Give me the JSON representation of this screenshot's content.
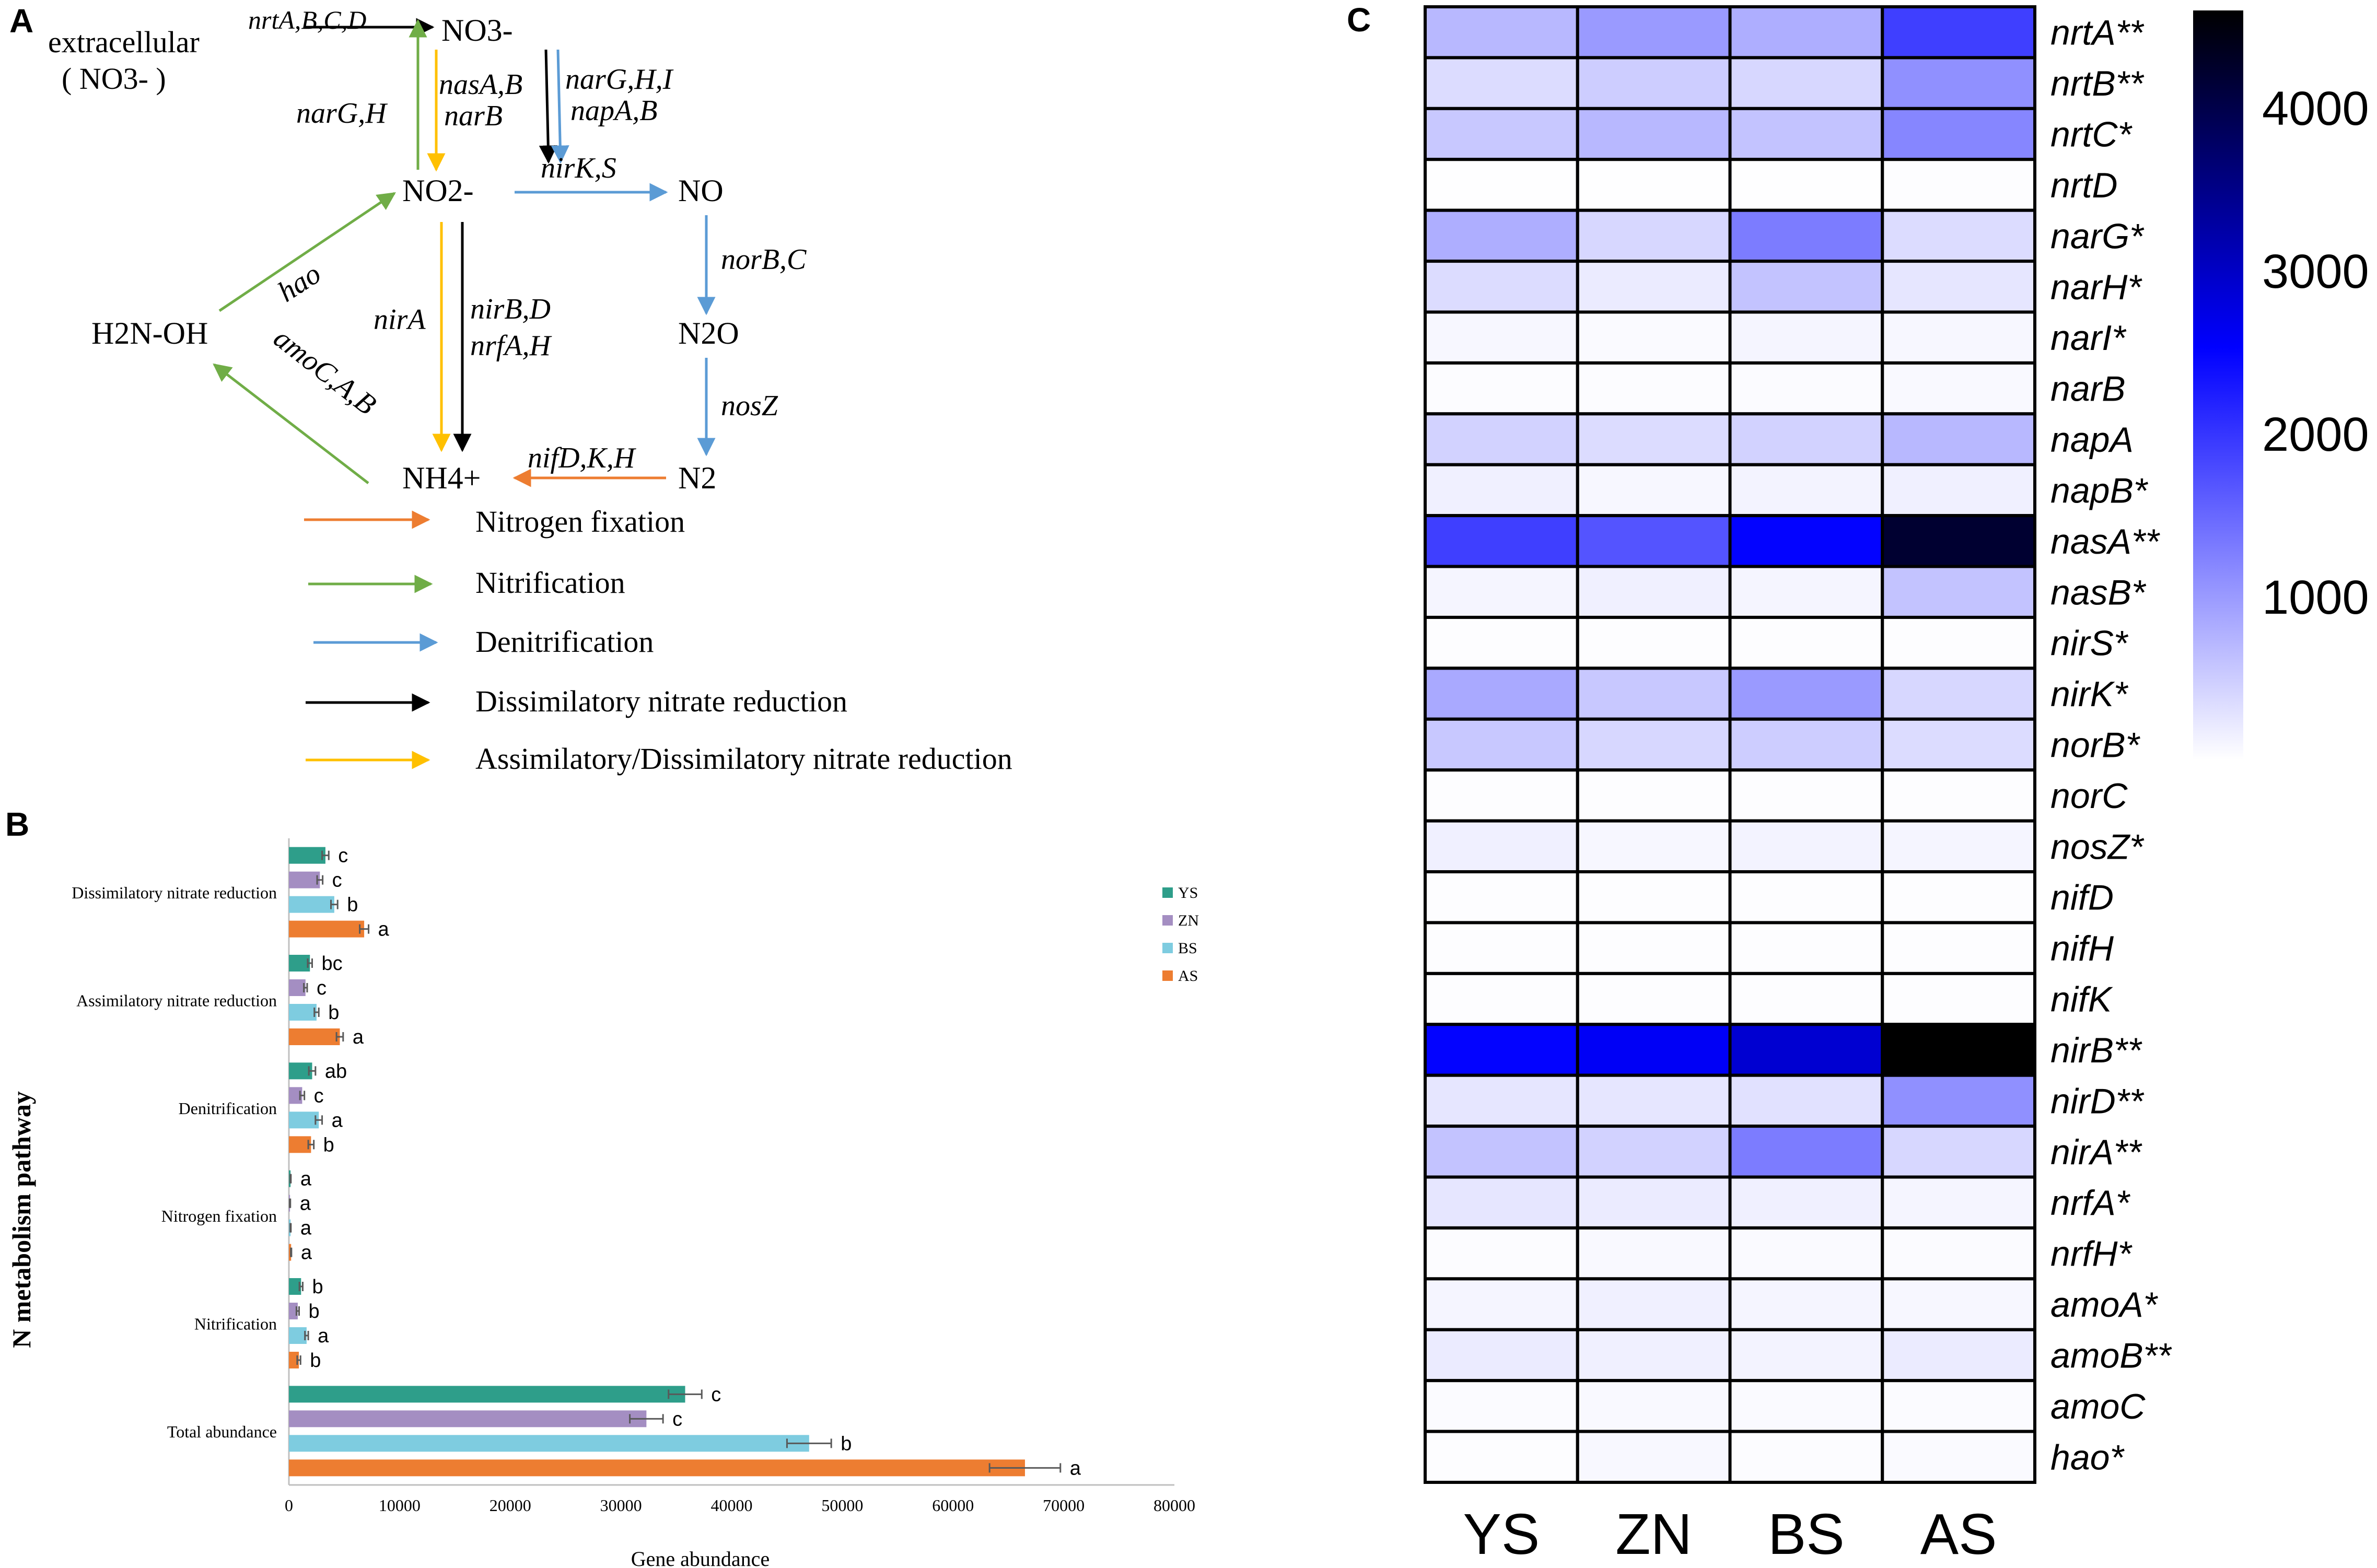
{
  "panel_labels": {
    "a": "A",
    "b": "B",
    "c": "C"
  },
  "diagram": {
    "nodes": {
      "extracellular": "extracellular",
      "extracellular_no3": "( NO3- )",
      "no3": "NO3-",
      "no2": "NO2-",
      "no": "NO",
      "n2o": "N2O",
      "n2": "N2",
      "nh4": "NH4+",
      "h2noh": "H2N-OH"
    },
    "edge_labels": {
      "nrtABCD": "nrtA,B,C,D",
      "narGH": "narG,H",
      "nasAB_narB_1": "nasA,B",
      "nasAB_narB_2": "narB",
      "narGHI_napAB_1": "narG,H,I",
      "narGHI_napAB_2": "napA,B",
      "nirKS": "nirK,S",
      "hao": "hao",
      "nirA": "nirA",
      "nirBD_nrfAH_1": "nirB,D",
      "nirBD_nrfAH_2": "nrfA,H",
      "norBC": "norB,C",
      "nosZ": "nosZ",
      "amoCAB": "amoC,A,B",
      "nifDKH": "nifD,K,H"
    },
    "legend": [
      {
        "label": "Nitrogen fixation",
        "color": "#ed7d31"
      },
      {
        "label": "Nitrification",
        "color": "#70ad47"
      },
      {
        "label": "Denitrification",
        "color": "#5b9bd5"
      },
      {
        "label": "Dissimilatory nitrate reduction",
        "color": "#000000"
      },
      {
        "label": "Assimilatory/Dissimilatory nitrate reduction",
        "color": "#ffc000"
      }
    ]
  },
  "chart_data": [
    {
      "type": "bar",
      "orientation": "horizontal",
      "xlabel": "Gene abundance",
      "ylabel": "N metabolism pathway",
      "xlim": [
        0,
        80000
      ],
      "xticks": [
        0,
        10000,
        20000,
        30000,
        40000,
        50000,
        60000,
        70000,
        80000
      ],
      "categories": [
        "Dissimilatory nitrate reduction",
        "Assimilatory nitrate reduction",
        "Denitrification",
        "Nitrogen fixation",
        "Nitrification",
        "Total abundance"
      ],
      "series": [
        {
          "name": "YS",
          "color": "#2e9e8a",
          "values": [
            3300,
            1900,
            2100,
            150,
            1100,
            35800
          ],
          "errors": [
            300,
            200,
            300,
            30,
            150,
            1500
          ],
          "letters": [
            "c",
            "bc",
            "ab",
            "a",
            "b",
            "c"
          ]
        },
        {
          "name": "ZN",
          "color": "#a48ec2",
          "values": [
            2800,
            1500,
            1200,
            100,
            800,
            32300
          ],
          "errors": [
            250,
            150,
            200,
            30,
            120,
            1500
          ],
          "letters": [
            "c",
            "c",
            "c",
            "a",
            "b",
            "c"
          ]
        },
        {
          "name": "BS",
          "color": "#7ecce0",
          "values": [
            4100,
            2500,
            2700,
            150,
            1600,
            47000
          ],
          "errors": [
            300,
            200,
            300,
            30,
            150,
            2000
          ],
          "letters": [
            "b",
            "b",
            "a",
            "a",
            "a",
            "b"
          ]
        },
        {
          "name": "AS",
          "color": "#ed7d31",
          "values": [
            6800,
            4600,
            2000,
            200,
            900,
            66500
          ],
          "errors": [
            400,
            300,
            250,
            30,
            150,
            3200
          ],
          "letters": [
            "a",
            "a",
            "b",
            "a",
            "b",
            "a"
          ]
        }
      ],
      "legend_position": "right"
    },
    {
      "type": "heatmap",
      "columns": [
        "YS",
        "ZN",
        "BS",
        "AS"
      ],
      "rows": [
        "nrtA**",
        "nrtB**",
        "nrtC*",
        "nrtD",
        "narG*",
        "narH*",
        "narI*",
        "narB",
        "napA",
        "napB*",
        "nasA**",
        "nasB*",
        "nirS*",
        "nirK*",
        "norB*",
        "norC",
        "nosZ*",
        "nifD",
        "nifH",
        "nifK",
        "nirB**",
        "nirD**",
        "nirA**",
        "nrfA*",
        "nrfH*",
        "amoA*",
        "amoB**",
        "amoC",
        "hao*"
      ],
      "values": [
        [
          700,
          1000,
          800,
          1900
        ],
        [
          350,
          500,
          400,
          1100
        ],
        [
          550,
          700,
          600,
          1200
        ],
        [
          10,
          10,
          10,
          20
        ],
        [
          800,
          400,
          1300,
          350
        ],
        [
          350,
          200,
          600,
          250
        ],
        [
          80,
          50,
          100,
          80
        ],
        [
          30,
          30,
          40,
          60
        ],
        [
          450,
          350,
          450,
          700
        ],
        [
          150,
          80,
          120,
          150
        ],
        [
          1900,
          1700,
          2500,
          4200
        ],
        [
          100,
          150,
          100,
          600
        ],
        [
          20,
          20,
          20,
          20
        ],
        [
          850,
          550,
          1000,
          400
        ],
        [
          550,
          400,
          500,
          350
        ],
        [
          20,
          20,
          20,
          20
        ],
        [
          150,
          80,
          120,
          100
        ],
        [
          20,
          20,
          20,
          20
        ],
        [
          20,
          20,
          20,
          20
        ],
        [
          20,
          20,
          20,
          20
        ],
        [
          2500,
          2600,
          2900,
          4600
        ],
        [
          250,
          250,
          300,
          1100
        ],
        [
          600,
          450,
          1300,
          400
        ],
        [
          250,
          200,
          150,
          100
        ],
        [
          30,
          60,
          50,
          40
        ],
        [
          100,
          150,
          100,
          80
        ],
        [
          200,
          150,
          120,
          200
        ],
        [
          40,
          60,
          50,
          40
        ],
        [
          20,
          70,
          30,
          50
        ]
      ],
      "colorbar": {
        "min": 0,
        "max": 4600,
        "ticks": [
          1000,
          2000,
          3000,
          4000
        ],
        "colors": [
          "#ffffff",
          "#0000ff",
          "#000000"
        ]
      }
    }
  ]
}
